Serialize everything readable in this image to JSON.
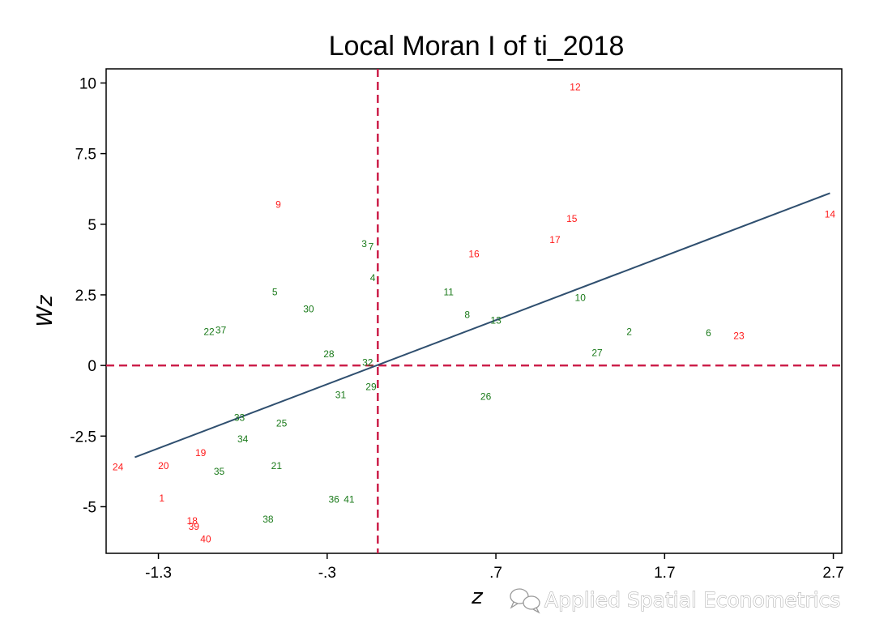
{
  "chart_data": {
    "type": "scatter",
    "title": "Local Moran I of ti_2018",
    "xlabel": "z",
    "ylabel": "Wz",
    "xlim": [
      -1.61,
      2.75
    ],
    "ylim": [
      -6.65,
      10.5
    ],
    "xticks": [
      -1.3,
      -0.3,
      0.7,
      1.7,
      2.7
    ],
    "xtick_labels": [
      "-1.3",
      "-.3",
      ".7",
      "1.7",
      "2.7"
    ],
    "yticks": [
      -5,
      -2.5,
      0,
      2.5,
      5,
      7.5,
      10
    ],
    "ytick_labels": [
      "-5",
      "-2.5",
      "0",
      "2.5",
      "5",
      "7.5",
      "10"
    ],
    "grid": false,
    "reference_lines": {
      "x": 0,
      "y": 0,
      "color": "#cc1f4a"
    },
    "fit_line": {
      "x": [
        -1.44,
        2.68
      ],
      "y": [
        -3.25,
        6.1
      ],
      "color": "#2f4f6f"
    },
    "colors": {
      "significant": "#ff1a1a",
      "not_significant": "#1a7a1a"
    },
    "points": [
      {
        "label": "1",
        "x": -1.28,
        "y": -4.7,
        "group": "significant"
      },
      {
        "label": "2",
        "x": 1.49,
        "y": 1.2,
        "group": "not_significant"
      },
      {
        "label": "3",
        "x": -0.08,
        "y": 4.3,
        "group": "not_significant"
      },
      {
        "label": "4",
        "x": -0.03,
        "y": 3.1,
        "group": "not_significant"
      },
      {
        "label": "5",
        "x": -0.61,
        "y": 2.6,
        "group": "not_significant"
      },
      {
        "label": "6",
        "x": 1.96,
        "y": 1.15,
        "group": "not_significant"
      },
      {
        "label": "7",
        "x": -0.04,
        "y": 4.2,
        "group": "not_significant"
      },
      {
        "label": "8",
        "x": 0.53,
        "y": 1.8,
        "group": "not_significant"
      },
      {
        "label": "9",
        "x": -0.59,
        "y": 5.7,
        "group": "significant"
      },
      {
        "label": "10",
        "x": 1.2,
        "y": 2.4,
        "group": "not_significant"
      },
      {
        "label": "11",
        "x": 0.42,
        "y": 2.6,
        "group": "not_significant"
      },
      {
        "label": "12",
        "x": 1.17,
        "y": 9.85,
        "group": "significant"
      },
      {
        "label": "13",
        "x": 0.7,
        "y": 1.6,
        "group": "not_significant"
      },
      {
        "label": "14",
        "x": 2.68,
        "y": 5.35,
        "group": "significant"
      },
      {
        "label": "15",
        "x": 1.15,
        "y": 5.2,
        "group": "significant"
      },
      {
        "label": "16",
        "x": 0.57,
        "y": 3.95,
        "group": "significant"
      },
      {
        "label": "17",
        "x": 1.05,
        "y": 4.45,
        "group": "significant"
      },
      {
        "label": "18",
        "x": -1.1,
        "y": -5.5,
        "group": "significant"
      },
      {
        "label": "19",
        "x": -1.05,
        "y": -3.1,
        "group": "significant"
      },
      {
        "label": "20",
        "x": -1.27,
        "y": -3.55,
        "group": "significant"
      },
      {
        "label": "21",
        "x": -0.6,
        "y": -3.55,
        "group": "not_significant"
      },
      {
        "label": "22",
        "x": -1.0,
        "y": 1.2,
        "group": "not_significant"
      },
      {
        "label": "23",
        "x": 2.14,
        "y": 1.05,
        "group": "significant"
      },
      {
        "label": "24",
        "x": -1.54,
        "y": -3.6,
        "group": "significant"
      },
      {
        "label": "25",
        "x": -0.57,
        "y": -2.05,
        "group": "not_significant"
      },
      {
        "label": "26",
        "x": 0.64,
        "y": -1.1,
        "group": "not_significant"
      },
      {
        "label": "27",
        "x": 1.3,
        "y": 0.45,
        "group": "not_significant"
      },
      {
        "label": "28",
        "x": -0.29,
        "y": 0.4,
        "group": "not_significant"
      },
      {
        "label": "29",
        "x": -0.04,
        "y": -0.75,
        "group": "not_significant"
      },
      {
        "label": "30",
        "x": -0.41,
        "y": 2.0,
        "group": "not_significant"
      },
      {
        "label": "31",
        "x": -0.22,
        "y": -1.05,
        "group": "not_significant"
      },
      {
        "label": "32",
        "x": -0.06,
        "y": 0.1,
        "group": "not_significant"
      },
      {
        "label": "33",
        "x": -0.82,
        "y": -1.85,
        "group": "not_significant"
      },
      {
        "label": "34",
        "x": -0.8,
        "y": -2.6,
        "group": "not_significant"
      },
      {
        "label": "35",
        "x": -0.94,
        "y": -3.75,
        "group": "not_significant"
      },
      {
        "label": "36",
        "x": -0.26,
        "y": -4.75,
        "group": "not_significant"
      },
      {
        "label": "37",
        "x": -0.93,
        "y": 1.25,
        "group": "not_significant"
      },
      {
        "label": "38",
        "x": -0.65,
        "y": -5.45,
        "group": "not_significant"
      },
      {
        "label": "39",
        "x": -1.09,
        "y": -5.7,
        "group": "significant"
      },
      {
        "label": "40",
        "x": -1.02,
        "y": -6.15,
        "group": "significant"
      },
      {
        "label": "41",
        "x": -0.17,
        "y": -4.75,
        "group": "not_significant"
      }
    ]
  },
  "watermark": {
    "text": "Applied Spatial Econometrics",
    "icon": "wechat-icon"
  }
}
